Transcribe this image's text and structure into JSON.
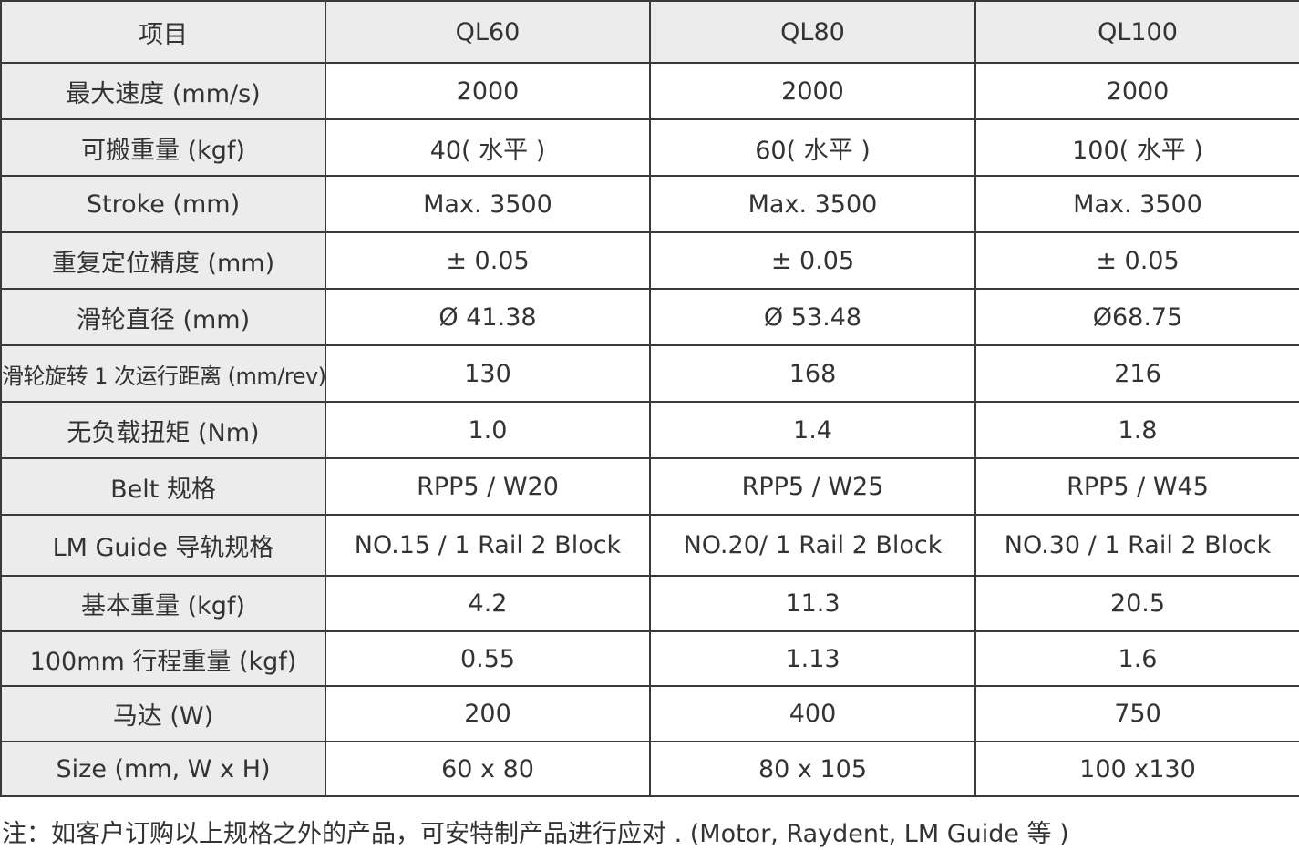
{
  "table": {
    "header": [
      "项目",
      "QL60",
      "QL80",
      "QL100"
    ],
    "rows": [
      {
        "label": "最大速度 (mm/s)",
        "values": [
          "2000",
          "2000",
          "2000"
        ]
      },
      {
        "label": "可搬重量 (kgf)",
        "values": [
          "40( 水平 )",
          "60( 水平 )",
          "100( 水平 )"
        ]
      },
      {
        "label": "Stroke (mm)",
        "values": [
          "Max. 3500",
          "Max. 3500",
          "Max. 3500"
        ]
      },
      {
        "label": "重复定位精度 (mm)",
        "values": [
          "± 0.05",
          "± 0.05",
          "± 0.05"
        ]
      },
      {
        "label": "滑轮直径 (mm)",
        "values": [
          "Ø 41.38",
          "Ø 53.48",
          "Ø68.75"
        ]
      },
      {
        "label": "滑轮旋转 1 次运行距离 (mm/rev)",
        "values": [
          "130",
          "168",
          "216"
        ]
      },
      {
        "label": "无负载扭矩 (Nm)",
        "values": [
          "1.0",
          "1.4",
          "1.8"
        ]
      },
      {
        "label": "Belt 规格",
        "values": [
          "RPP5 / W20",
          "RPP5 / W25",
          "RPP5 / W45"
        ]
      },
      {
        "label": "LM Guide 导轨规格",
        "values": [
          "NO.15 / 1 Rail 2 Block",
          "NO.20/ 1 Rail 2 Block",
          "NO.30 / 1 Rail 2 Block"
        ]
      },
      {
        "label": "基本重量 (kgf)",
        "values": [
          "4.2",
          "11.3",
          "20.5"
        ]
      },
      {
        "label": "100mm 行程重量 (kgf)",
        "values": [
          "0.55",
          "1.13",
          "1.6"
        ]
      },
      {
        "label": "马达 (W)",
        "values": [
          "200",
          "400",
          "750"
        ]
      },
      {
        "label": "Size (mm, W x H)",
        "values": [
          "60 x 80",
          "80 x 105",
          "100 x130"
        ]
      }
    ]
  },
  "footnote": "注：如客户订购以上规格之外的产品，可安特制产品进行应对 . (Motor, Raydent, LM Guide 等 )"
}
